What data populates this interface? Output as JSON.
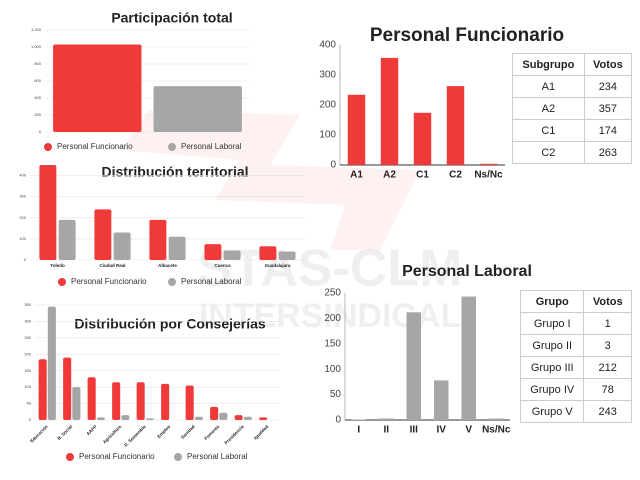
{
  "chart_data": [
    {
      "type": "bar",
      "title": "Participación total",
      "categories": [
        null
      ],
      "series": [
        {
          "name": "Personal Funcionario",
          "color": "#f03a3a",
          "values": [
            1030
          ]
        },
        {
          "name": "Personal Laboral",
          "color": "#a6a6a6",
          "values": [
            540
          ]
        }
      ],
      "ylim": [
        0,
        1200
      ],
      "yticks": [
        0,
        200,
        400,
        600,
        800,
        {
          "value": 1000,
          "label": "1,000"
        },
        {
          "value": 1200,
          "label": "1,200"
        }
      ],
      "grid": true
    },
    {
      "type": "bar",
      "title": "Distribución territorial",
      "categories": [
        "Toledo",
        "Ciudad Real",
        "Albacete",
        "Cuenca",
        "Guadalajara"
      ],
      "series": [
        {
          "name": "Personal Funcionario",
          "color": "#f03a3a",
          "values": [
            450,
            240,
            190,
            75,
            65
          ]
        },
        {
          "name": "Personal Laboral",
          "color": "#a6a6a6",
          "values": [
            190,
            130,
            110,
            45,
            40
          ]
        }
      ],
      "ylim": [
        0,
        450
      ],
      "yticks": [
        0,
        100,
        200,
        300,
        400
      ],
      "grid": true
    },
    {
      "type": "bar",
      "title": "Distribución por Consejerías",
      "categories": [
        "Educación",
        "B. Social",
        "AAPP",
        "Agricultura",
        "D. Sostenible",
        "Empleo",
        "Sanidad",
        "Fomento",
        "Presidencia",
        "Igualdad"
      ],
      "series": [
        {
          "name": "Personal Funcionario",
          "color": "#f03a3a",
          "values": [
            185,
            190,
            130,
            115,
            115,
            110,
            105,
            40,
            15,
            8
          ]
        },
        {
          "name": "Personal Laboral",
          "color": "#a6a6a6",
          "values": [
            345,
            100,
            8,
            15,
            5,
            0,
            10,
            22,
            10,
            0
          ]
        }
      ],
      "ylim": [
        0,
        350
      ],
      "yticks": [
        0,
        50,
        100,
        150,
        200,
        250,
        300,
        350
      ],
      "grid": true
    },
    {
      "type": "bar",
      "title": "Personal Funcionario",
      "categories": [
        "A1",
        "A2",
        "C1",
        "C2",
        "Ns/Nc"
      ],
      "values": [
        234,
        357,
        174,
        263,
        4
      ],
      "color": "#f03a3a",
      "ylim": [
        0,
        400
      ],
      "yticks": [
        0,
        100,
        200,
        300,
        400
      ],
      "grid": false
    },
    {
      "type": "bar",
      "title": "Personal Laboral",
      "categories": [
        "I",
        "II",
        "III",
        "IV",
        "V",
        "Ns/Nc"
      ],
      "values": [
        1,
        3,
        212,
        78,
        243,
        3
      ],
      "color": "#a6a6a6",
      "ylim": [
        0,
        250
      ],
      "yticks": [
        0,
        50,
        100,
        150,
        200,
        250
      ],
      "grid": false
    }
  ],
  "tables": [
    {
      "header": [
        "Subgrupo",
        "Votos"
      ],
      "rows": [
        [
          "A1",
          "234"
        ],
        [
          "A2",
          "357"
        ],
        [
          "C1",
          "174"
        ],
        [
          "C2",
          "263"
        ]
      ]
    },
    {
      "header": [
        "Grupo",
        "Votos"
      ],
      "rows": [
        [
          "Grupo I",
          "1"
        ],
        [
          "Grupo II",
          "3"
        ],
        [
          "Grupo III",
          "212"
        ],
        [
          "Grupo IV",
          "78"
        ],
        [
          "Grupo V",
          "243"
        ]
      ]
    }
  ],
  "watermark": [
    "STAS-CLM",
    "INTERSINDICAL"
  ]
}
